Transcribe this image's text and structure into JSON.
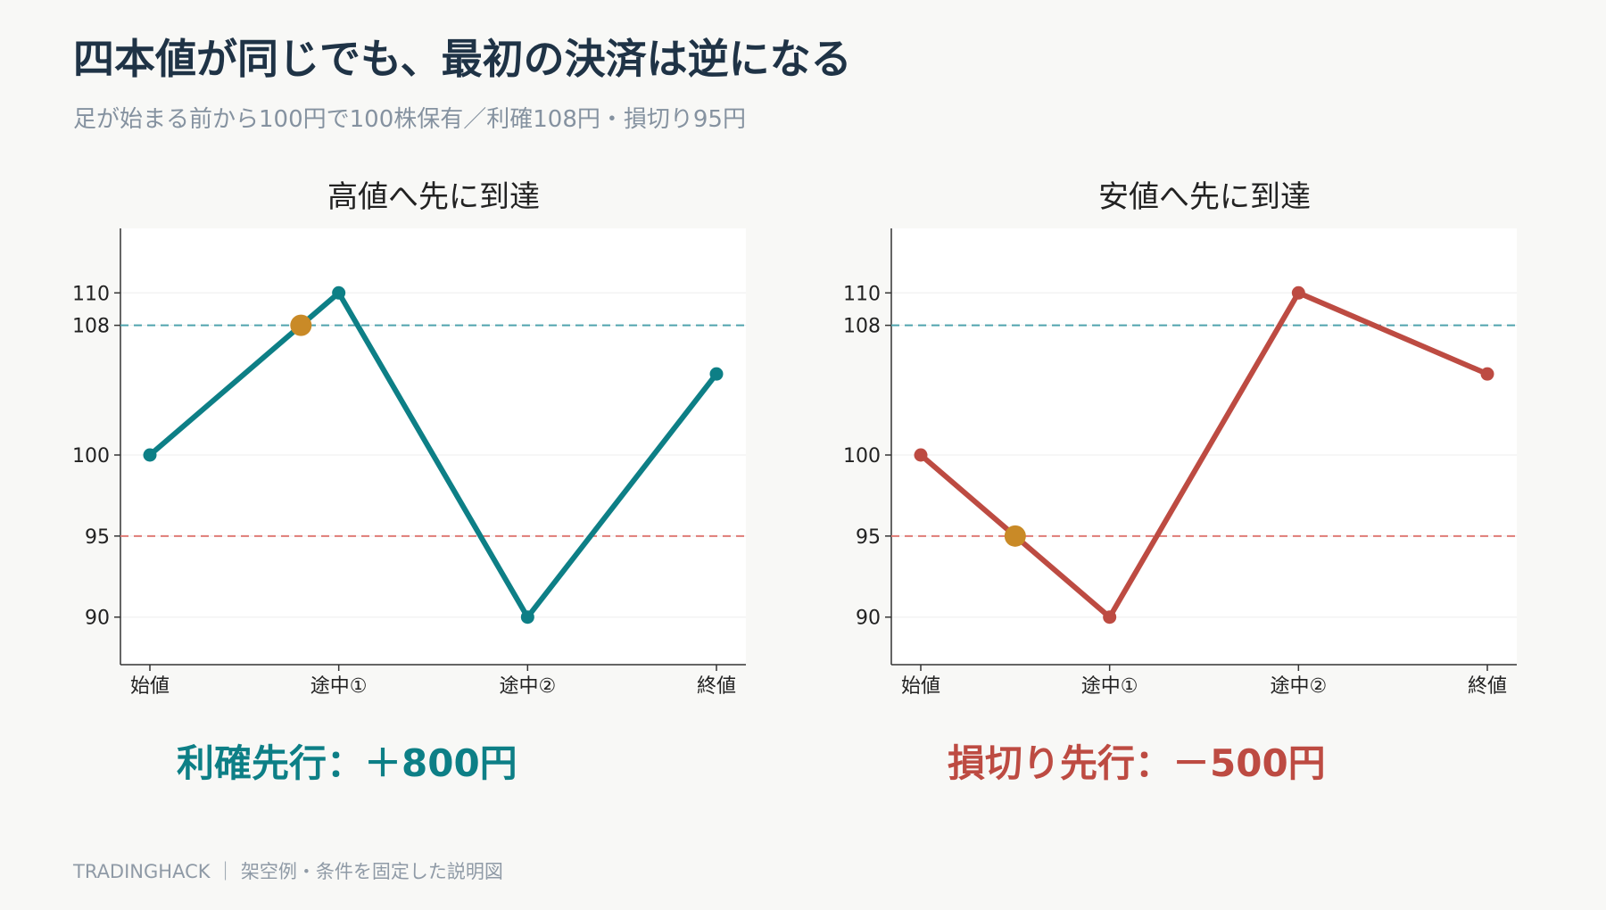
{
  "header": {
    "title": "四本値が同じでも、最初の決済は逆になる",
    "subtitle": "足が始まる前から100円で100株保有／利確108円・損切り95円"
  },
  "footer": {
    "text": "TRADINGHACK ｜ 架空例・条件を固定した説明図"
  },
  "colors": {
    "teal": "#0d7f86",
    "red": "#bd4b42",
    "orange": "#c98a27",
    "take_profit_line": "#4fa3ad",
    "stop_loss_line": "#df7b76"
  },
  "chart_data": [
    {
      "type": "line",
      "title": "高値へ先に到達",
      "categories": [
        "始値",
        "途中①",
        "途中②",
        "終値"
      ],
      "series": [
        {
          "values": [
            100,
            110,
            90,
            105
          ]
        }
      ],
      "yticks": [
        90,
        95,
        100,
        108,
        110
      ],
      "ylim": [
        87,
        114
      ],
      "reference_lines": [
        {
          "value": 108,
          "style": "dashed",
          "color": "teal"
        },
        {
          "value": 95,
          "style": "dashed",
          "color": "red"
        }
      ],
      "highlight_point": {
        "x": 0.8,
        "y": 108
      },
      "result_text": "利確先行：＋800円",
      "line_color": "#0d7f86",
      "grid": true
    },
    {
      "type": "line",
      "title": "安値へ先に到達",
      "categories": [
        "始値",
        "途中①",
        "途中②",
        "終値"
      ],
      "series": [
        {
          "values": [
            100,
            90,
            110,
            105
          ]
        }
      ],
      "yticks": [
        90,
        95,
        100,
        108,
        110
      ],
      "ylim": [
        87,
        114
      ],
      "reference_lines": [
        {
          "value": 108,
          "style": "dashed",
          "color": "teal"
        },
        {
          "value": 95,
          "style": "dashed",
          "color": "red"
        }
      ],
      "highlight_point": {
        "x": 0.5,
        "y": 95
      },
      "result_text": "損切り先行：－500円",
      "line_color": "#bd4b42",
      "grid": true
    }
  ]
}
